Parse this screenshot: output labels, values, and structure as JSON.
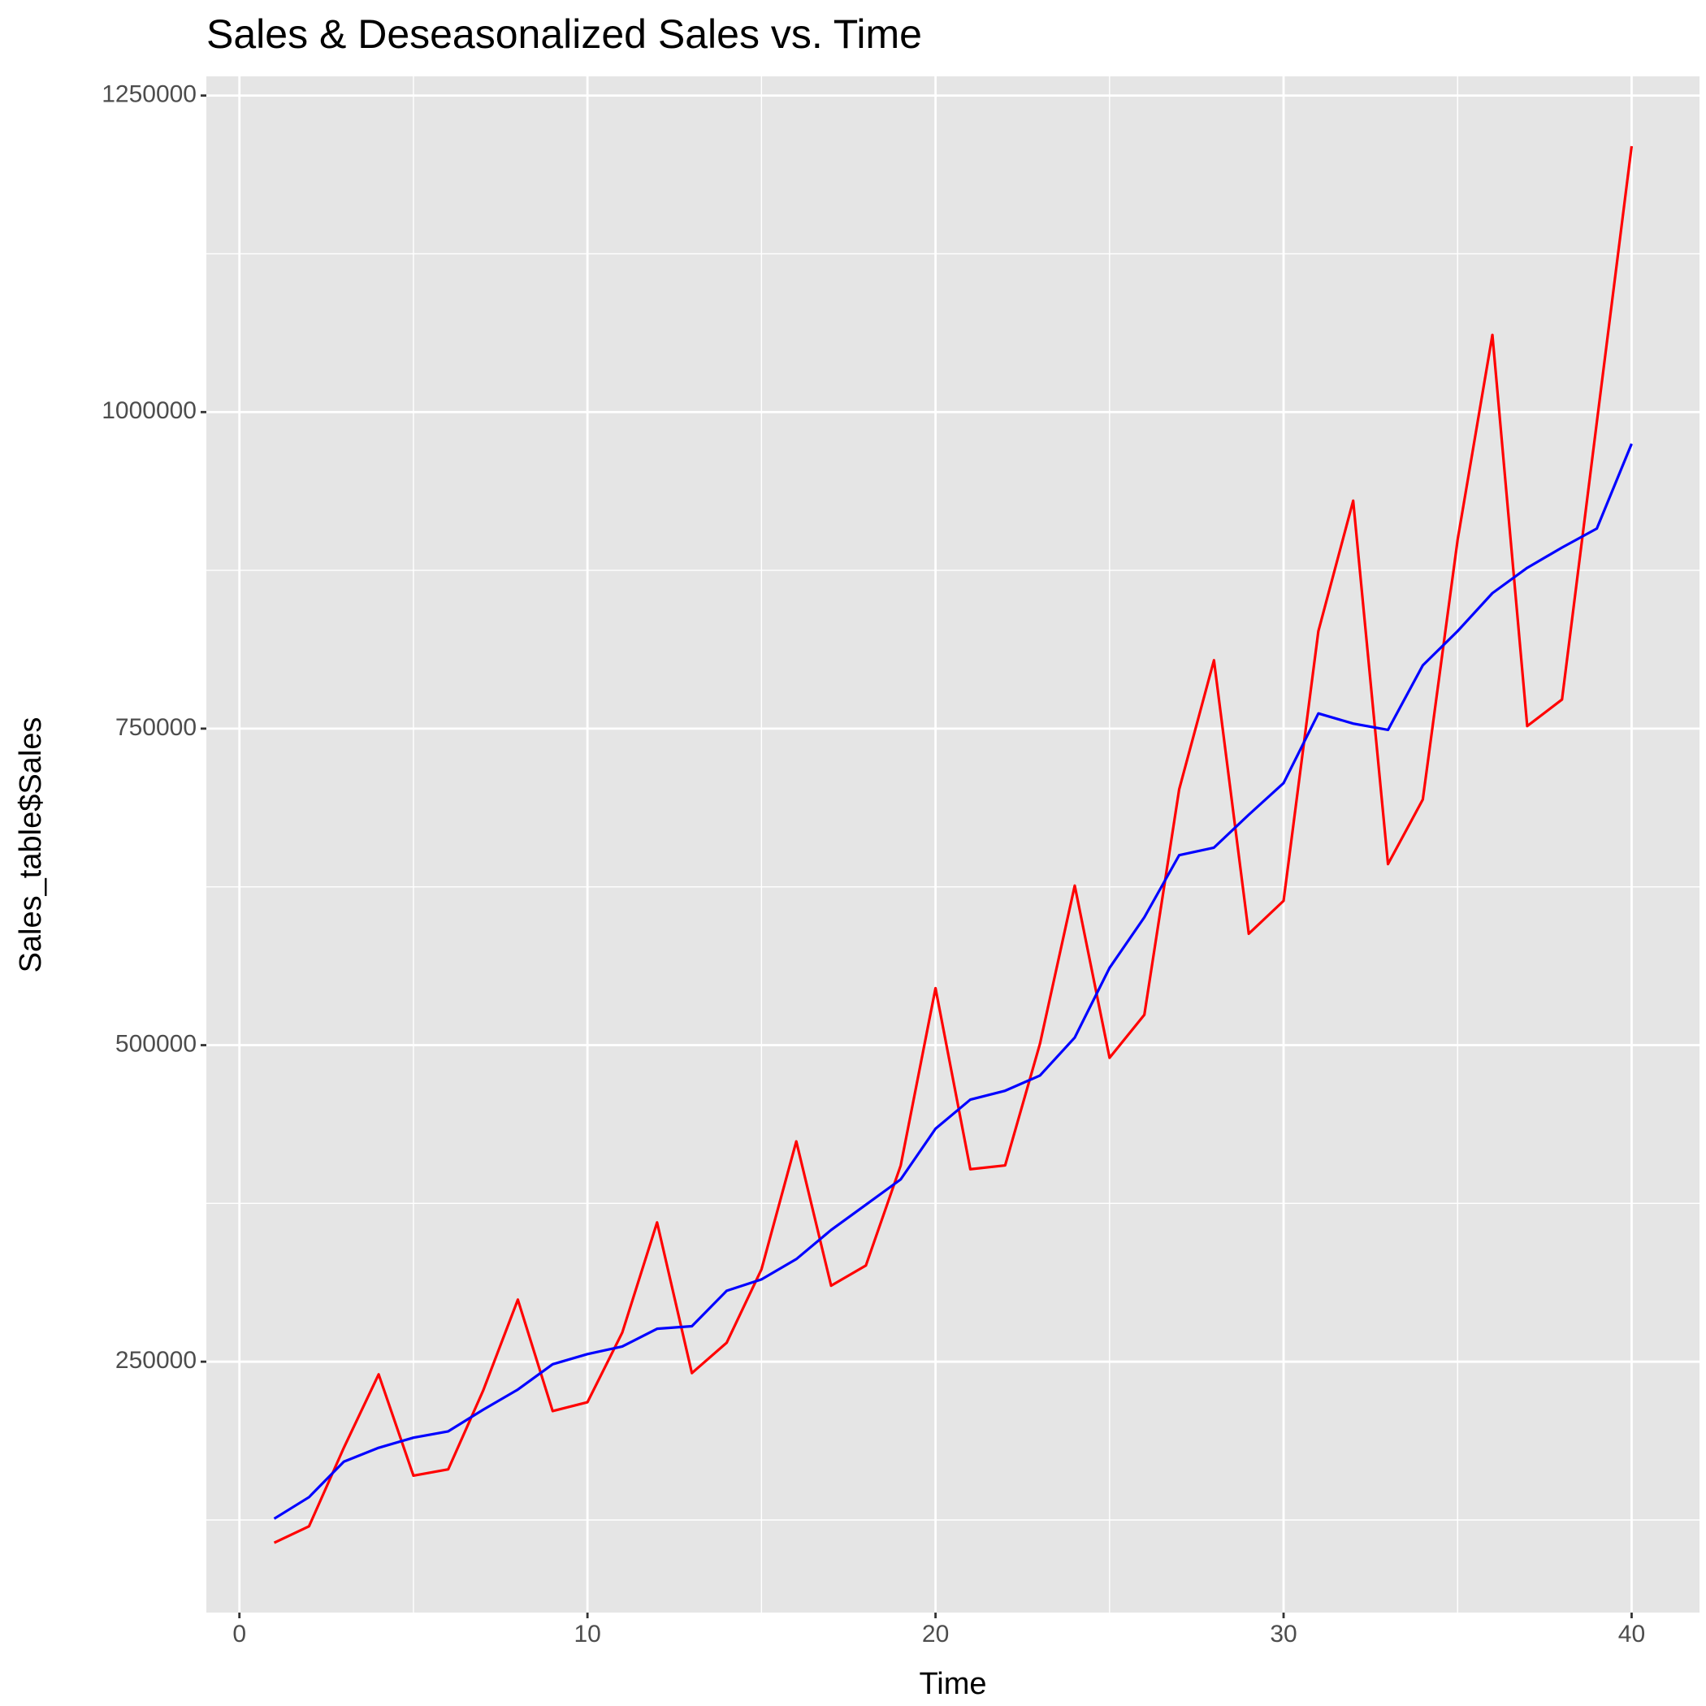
{
  "chart_data": {
    "type": "line",
    "title": "Sales & Deseasonalized Sales vs. Time",
    "x_label": "Time",
    "y_label": "Sales_table$Sales",
    "x": [
      1,
      2,
      3,
      4,
      5,
      6,
      7,
      8,
      9,
      10,
      11,
      12,
      13,
      14,
      15,
      16,
      17,
      18,
      19,
      20,
      21,
      22,
      23,
      24,
      25,
      26,
      27,
      28,
      29,
      30,
      31,
      32,
      33,
      34,
      35,
      36,
      37,
      38,
      39,
      40
    ],
    "series": [
      {
        "color": "#ff0000",
        "values": [
          107000,
          120000,
          182000,
          240000,
          160000,
          165000,
          227000,
          299000,
          211000,
          218000,
          273000,
          360000,
          241000,
          265000,
          323000,
          424000,
          310000,
          326000,
          405000,
          545000,
          402000,
          405000,
          501000,
          626000,
          490000,
          524000,
          702000,
          804000,
          588000,
          614000,
          827000,
          930000,
          643000,
          694000,
          899000,
          1061000,
          752000,
          773000,
          992000,
          1210000
        ]
      },
      {
        "color": "#0000ff",
        "values": [
          126000,
          143000,
          171000,
          182000,
          190000,
          195000,
          212000,
          228000,
          248000,
          256000,
          262000,
          276000,
          278000,
          306000,
          315000,
          331000,
          354000,
          374000,
          394000,
          434000,
          457000,
          464000,
          476000,
          506000,
          561000,
          601000,
          650000,
          656000,
          682000,
          707000,
          762000,
          754000,
          749000,
          800000,
          827000,
          857000,
          877000,
          893000,
          908000,
          975000
        ]
      }
    ],
    "xlim": [
      -0.95,
      41.95
    ],
    "ylim": [
      51850,
      1265150
    ],
    "xticks": [
      0,
      10,
      20,
      30,
      40
    ],
    "yticks": [
      250000,
      500000,
      750000,
      1000000,
      1250000
    ],
    "xminor": [
      5,
      15,
      25,
      35
    ],
    "yminor": [
      125000,
      375000,
      625000,
      875000,
      1125000
    ],
    "grid": true
  }
}
